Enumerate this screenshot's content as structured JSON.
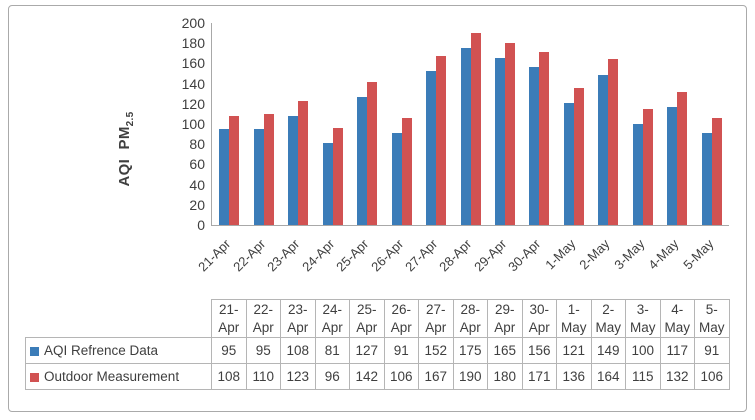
{
  "chart_data": {
    "type": "bar",
    "title": "",
    "xlabel": "",
    "ylabel_main": "AQI PM",
    "ylabel_sub": "2.5",
    "ylim": [
      0,
      200
    ],
    "ytick_step": 20,
    "grid": false,
    "legend_position": "table-left",
    "categories": [
      "21-Apr",
      "22-Apr",
      "23-Apr",
      "24-Apr",
      "25-Apr",
      "26-Apr",
      "27-Apr",
      "28-Apr",
      "29-Apr",
      "30-Apr",
      "1-May",
      "2-May",
      "3-May",
      "4-May",
      "5-May"
    ],
    "series": [
      {
        "name": "AQI Refrence Data",
        "color": "#3b7cb8",
        "values": [
          95,
          95,
          108,
          81,
          127,
          91,
          152,
          175,
          165,
          156,
          121,
          149,
          100,
          117,
          91
        ]
      },
      {
        "name": "Outdoor Measurement",
        "color": "#d15252",
        "values": [
          108,
          110,
          123,
          96,
          142,
          106,
          167,
          190,
          180,
          171,
          136,
          164,
          115,
          132,
          106
        ]
      }
    ]
  },
  "colors": {
    "axis_line": "#a8a8a8",
    "table_border": "#b5b5b5",
    "text": "#3f3f3f",
    "frame_border": "#aaaaaa"
  }
}
